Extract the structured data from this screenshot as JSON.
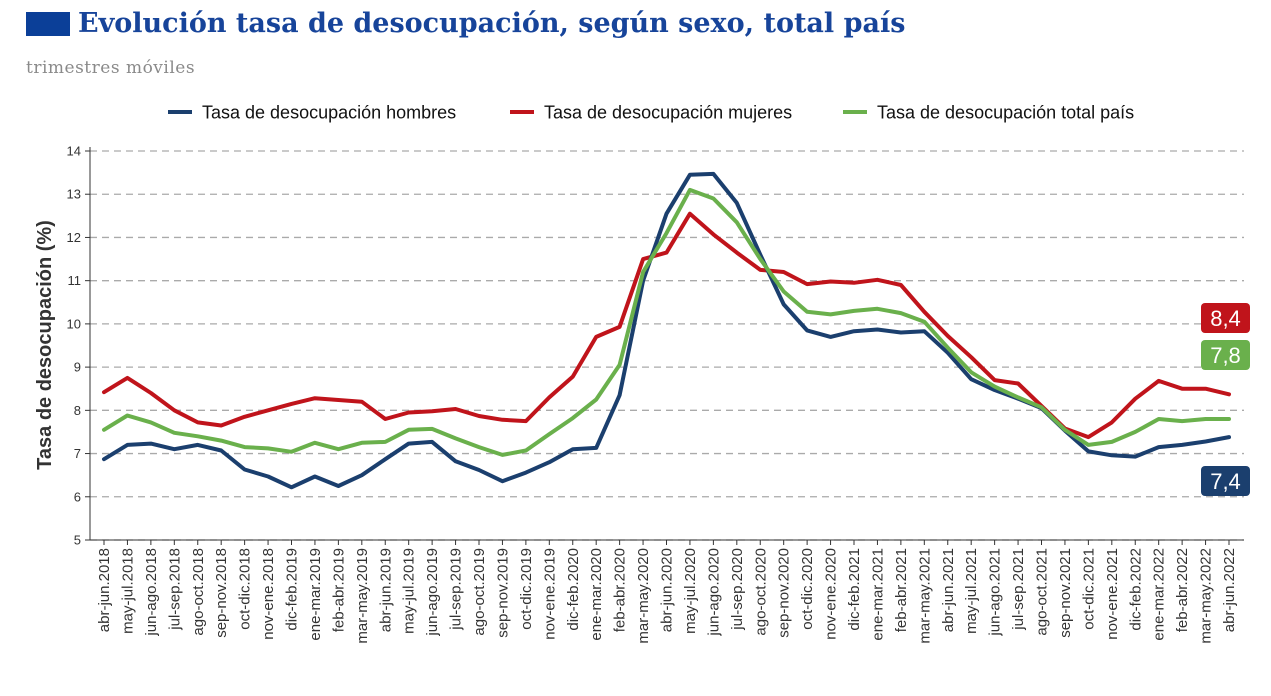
{
  "title": "Evolución tasa de desocupación, según sexo, total país",
  "subtitle": "trimestres móviles",
  "chart_data": {
    "type": "line",
    "ylabel": "Tasa de desocupación (%)",
    "ylim": [
      5,
      14
    ],
    "yticks": [
      5,
      6,
      7,
      8,
      9,
      10,
      11,
      12,
      13,
      14
    ],
    "grid": "horizontal-dashed",
    "legend_position": "top",
    "categories": [
      "abr-jun.2018",
      "may-jul.2018",
      "jun-ago.2018",
      "jul-sep.2018",
      "ago-oct.2018",
      "sep-nov.2018",
      "oct-dic.2018",
      "nov-ene.2018",
      "dic-feb.2019",
      "ene-mar.2019",
      "feb-abr.2019",
      "mar-may.2019",
      "abr-jun.2019",
      "may-jul.2019",
      "jun-ago.2019",
      "jul-sep.2019",
      "ago-oct.2019",
      "sep-nov.2019",
      "oct-dic.2019",
      "nov-ene.2019",
      "dic-feb.2020",
      "ene-mar.2020",
      "feb-abr.2020",
      "mar-may.2020",
      "abr-jun.2020",
      "may-jul.2020",
      "jun-ago.2020",
      "jul-sep.2020",
      "ago-oct.2020",
      "sep-nov.2020",
      "oct-dic.2020",
      "nov-ene.2020",
      "dic-feb.2021",
      "ene-mar.2021",
      "feb-abr.2021",
      "mar-may.2021",
      "abr-jun.2021",
      "may-jul.2021",
      "jun-ago.2021",
      "jul-sep.2021",
      "ago-oct.2021",
      "sep-nov.2021",
      "oct-dic.2021",
      "nov-ene.2021",
      "dic-feb.2022",
      "ene-mar.2022",
      "feb-abr.2022",
      "mar-may.2022",
      "abr-jun.2022"
    ],
    "series": [
      {
        "name": "Tasa de desocupación hombres",
        "color": "#1b3f6e",
        "end_label": "7,4",
        "values": [
          6.87,
          7.2,
          7.23,
          7.1,
          7.2,
          7.07,
          6.63,
          6.47,
          6.22,
          6.47,
          6.25,
          6.5,
          6.87,
          7.23,
          7.27,
          6.82,
          6.62,
          6.36,
          6.56,
          6.8,
          7.1,
          7.13,
          8.35,
          11.0,
          12.55,
          13.45,
          13.47,
          12.8,
          11.6,
          10.45,
          9.85,
          9.7,
          9.83,
          9.87,
          9.8,
          9.83,
          9.33,
          8.72,
          8.47,
          8.27,
          8.05,
          7.53,
          7.05,
          6.96,
          6.93,
          7.15,
          7.2,
          7.28,
          7.38
        ]
      },
      {
        "name": "Tasa de desocupación mujeres",
        "color": "#c0141b",
        "end_label": "8,4",
        "values": [
          8.42,
          8.75,
          8.4,
          8.0,
          7.72,
          7.65,
          7.85,
          8.0,
          8.15,
          8.28,
          8.24,
          8.2,
          7.8,
          7.95,
          7.98,
          8.03,
          7.87,
          7.78,
          7.75,
          8.3,
          8.78,
          9.7,
          9.93,
          11.5,
          11.65,
          12.55,
          12.07,
          11.65,
          11.25,
          11.2,
          10.92,
          10.98,
          10.95,
          11.02,
          10.9,
          10.28,
          9.72,
          9.23,
          8.7,
          8.62,
          8.1,
          7.58,
          7.38,
          7.72,
          8.27,
          8.68,
          8.5,
          8.5,
          8.37
        ]
      },
      {
        "name": "Tasa de desocupación total país",
        "color": "#6ab04c",
        "end_label": "7,8",
        "values": [
          7.55,
          7.88,
          7.72,
          7.48,
          7.4,
          7.3,
          7.15,
          7.12,
          7.04,
          7.25,
          7.1,
          7.25,
          7.27,
          7.55,
          7.57,
          7.35,
          7.15,
          6.97,
          7.07,
          7.45,
          7.82,
          8.25,
          9.05,
          11.2,
          12.1,
          13.1,
          12.9,
          12.35,
          11.5,
          10.75,
          10.28,
          10.22,
          10.3,
          10.35,
          10.25,
          10.05,
          9.45,
          8.88,
          8.55,
          8.3,
          8.07,
          7.55,
          7.2,
          7.27,
          7.5,
          7.8,
          7.75,
          7.8,
          7.8
        ]
      }
    ]
  }
}
